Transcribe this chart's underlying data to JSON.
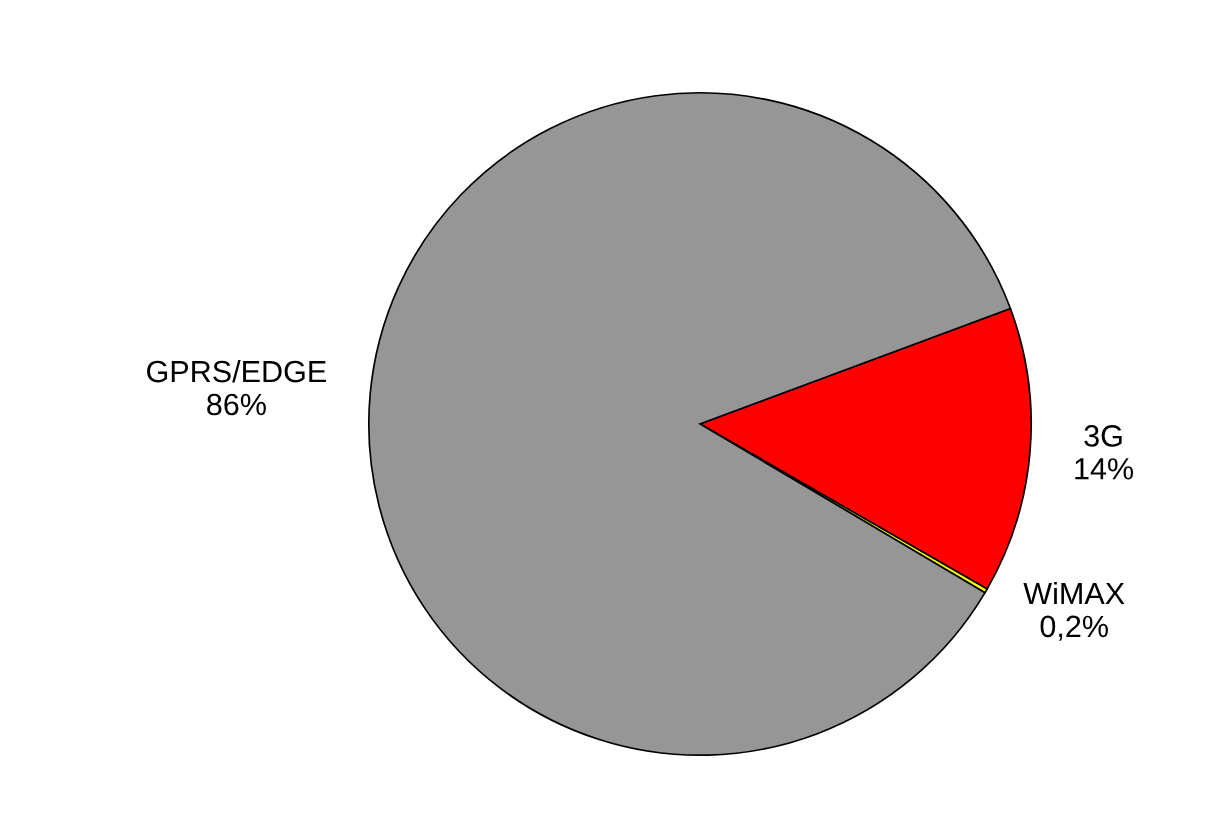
{
  "chart_data": {
    "type": "pie",
    "categories": [
      "3G",
      "WiMAX",
      "GPRS/EDGE"
    ],
    "values": [
      14,
      0.2,
      86
    ],
    "value_labels": [
      "14%",
      "0,2%",
      "86%"
    ],
    "colors": [
      "#ff0000",
      "#ffff00",
      "#969696"
    ]
  }
}
